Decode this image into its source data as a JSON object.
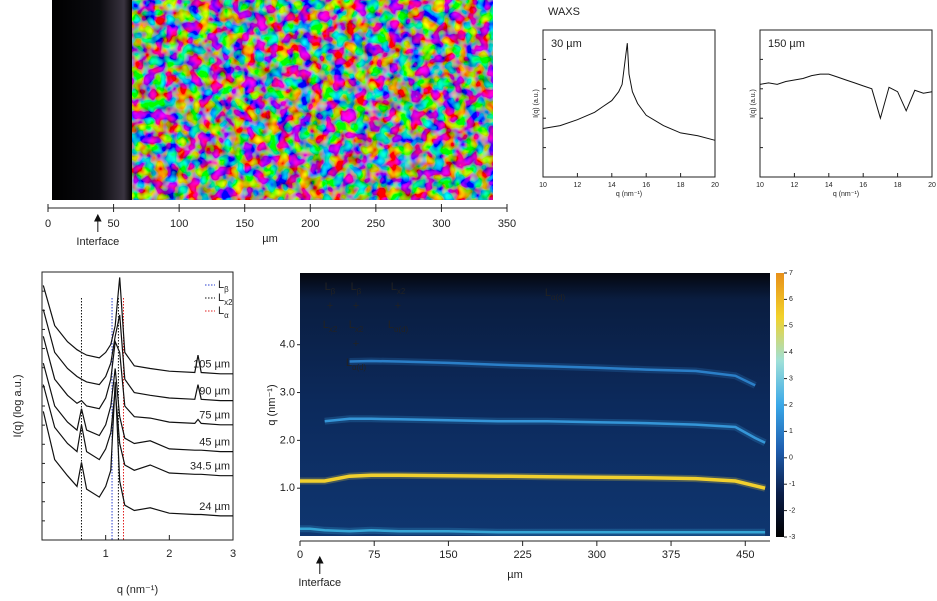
{
  "chart_data": [
    {
      "type": "image",
      "xlabel": "µm",
      "xlim": [
        0,
        350
      ],
      "xticks": [
        0,
        50,
        100,
        150,
        200,
        250,
        300,
        350
      ],
      "annotations": [
        {
          "text": "Interface",
          "x": 38
        }
      ]
    },
    {
      "type": "line",
      "title": "WAXS",
      "panel_label": "30 µm",
      "xlabel": "q (nm⁻¹)",
      "ylabel": "I(q) (a.u.)",
      "xlim": [
        10,
        20
      ],
      "xticks": [
        10,
        12,
        14,
        16,
        18,
        20
      ],
      "ylim": [
        0,
        10
      ],
      "color": "#111111",
      "x": [
        10,
        11,
        12,
        13,
        13.5,
        14,
        14.4,
        14.6,
        14.8,
        14.9,
        15,
        15.2,
        15.5,
        16,
        17,
        18,
        19,
        20
      ],
      "values": [
        3.3,
        3.5,
        3.9,
        4.4,
        4.8,
        5.2,
        5.8,
        6.3,
        8.2,
        9.1,
        7.0,
        5.8,
        5.0,
        4.2,
        3.5,
        3.0,
        2.8,
        2.5
      ]
    },
    {
      "type": "line",
      "panel_label": "150 µm",
      "xlabel": "q (nm⁻¹)",
      "ylabel": "I(q) (a.u.)",
      "xlim": [
        10,
        20
      ],
      "xticks": [
        10,
        12,
        14,
        16,
        18,
        20
      ],
      "ylim": [
        0,
        10
      ],
      "color": "#111111",
      "x": [
        10,
        10.5,
        11,
        11.5,
        12,
        12.5,
        13,
        13.5,
        14,
        14.5,
        15,
        15.5,
        16,
        16.5,
        17,
        17.5,
        18,
        18.5,
        19,
        19.5,
        20
      ],
      "values": [
        6.3,
        6.4,
        6.3,
        6.5,
        6.6,
        6.7,
        6.9,
        7.0,
        7.0,
        6.8,
        6.6,
        6.4,
        6.2,
        6.0,
        4.0,
        6.1,
        5.8,
        4.5,
        5.9,
        5.7,
        5.8
      ]
    },
    {
      "type": "multiline",
      "xlabel": "q (nm⁻¹)",
      "ylabel": "I(q) (log a.u.)",
      "xlim": [
        0,
        3
      ],
      "xticks": [
        1,
        2,
        3
      ],
      "ylim": [
        0,
        10
      ],
      "x": [
        0.02,
        0.2,
        0.4,
        0.55,
        0.62,
        0.7,
        0.9,
        1.0,
        1.08,
        1.15,
        1.22,
        1.3,
        1.45,
        1.7,
        2.0,
        2.4,
        2.45,
        2.5,
        2.8,
        3.0
      ],
      "series": [
        {
          "name": "105 µm",
          "color": "#111111",
          "values": [
            9.5,
            8.0,
            7.4,
            7.1,
            7.0,
            6.9,
            6.8,
            7.0,
            7.3,
            8.0,
            9.8,
            7.0,
            6.5,
            6.4,
            6.3,
            6.25,
            6.9,
            6.25,
            6.2,
            6.2
          ]
        },
        {
          "name": "90 µm",
          "color": "#111111",
          "values": [
            8.6,
            7.0,
            6.4,
            6.1,
            6.0,
            5.9,
            5.8,
            6.1,
            6.6,
            7.6,
            8.4,
            6.0,
            5.5,
            5.4,
            5.3,
            5.25,
            5.8,
            5.25,
            5.2,
            5.2
          ]
        },
        {
          "name": "75 µm",
          "color": "#111111",
          "values": [
            7.6,
            6.0,
            5.4,
            5.1,
            5.2,
            5.0,
            4.9,
            5.3,
            6.0,
            7.4,
            7.0,
            5.0,
            4.6,
            4.55,
            4.4,
            4.35,
            4.5,
            4.35,
            4.3,
            4.3
          ]
        },
        {
          "name": "45 µm",
          "color": "#111111",
          "values": [
            6.6,
            5.0,
            4.4,
            4.1,
            4.9,
            4.1,
            3.9,
            4.3,
            5.0,
            6.4,
            4.6,
            3.8,
            3.6,
            3.7,
            3.4,
            3.35,
            3.35,
            3.35,
            3.3,
            3.3
          ]
        },
        {
          "name": "34.5 µm",
          "color": "#111111",
          "values": [
            5.8,
            4.2,
            3.6,
            3.3,
            4.3,
            3.3,
            3.0,
            3.4,
            4.0,
            5.6,
            3.6,
            2.8,
            2.6,
            2.8,
            2.5,
            2.45,
            2.45,
            2.45,
            2.4,
            2.4
          ]
        },
        {
          "name": "24 µm",
          "color": "#111111",
          "values": [
            4.8,
            3.0,
            2.4,
            2.0,
            2.9,
            1.9,
            1.6,
            2.0,
            2.6,
            5.9,
            2.2,
            1.3,
            1.1,
            1.2,
            1.0,
            0.95,
            0.95,
            0.95,
            0.9,
            0.9
          ]
        }
      ],
      "reflections": [
        {
          "text": "L",
          "sub": "β",
          "color": "#2a3fd0",
          "values": [
            1.1
          ]
        },
        {
          "text": "L",
          "sub": "x2",
          "color": "#111111",
          "values": [
            0.62,
            1.2
          ]
        },
        {
          "text": "L",
          "sub": "α",
          "color": "#e02020",
          "values": [
            1.28
          ]
        }
      ]
    },
    {
      "type": "heatmap",
      "xlabel": "µm",
      "ylabel": "q (nm⁻¹)",
      "xlim": [
        0,
        475
      ],
      "xticks": [
        0,
        75,
        150,
        225,
        300,
        375,
        450
      ],
      "ylim": [
        0,
        5.5
      ],
      "yticks": [
        {
          "value": 1,
          "label": "1.0"
        },
        {
          "value": 2,
          "label": "2.0"
        },
        {
          "value": 3,
          "label": "3.0"
        },
        {
          "value": 4,
          "label": "4.0"
        }
      ],
      "colorbar_lim": [
        -3,
        7
      ],
      "colorbar_ticks": [
        -3,
        -2,
        -1,
        0,
        1,
        2,
        3,
        4,
        5,
        6,
        7
      ],
      "colormap": [
        "#000000",
        "#0b1e4a",
        "#1f5fb0",
        "#3aa8e8",
        "#9fe0d8",
        "#f2d22a",
        "#e8901a"
      ],
      "x": [
        0,
        10,
        25,
        50,
        72,
        100,
        150,
        200,
        250,
        300,
        350,
        400,
        440,
        460,
        470
      ],
      "series": [
        {
          "color": "#36a6d6",
          "values": [
            0.15,
            0.15,
            0.12,
            0.1,
            0.12,
            0.1,
            0.1,
            0.08,
            0.08,
            0.08,
            0.08,
            0.08,
            0.08,
            0.08,
            0.08
          ]
        },
        {
          "color": "#f1d02e",
          "values": [
            1.15,
            1.15,
            1.15,
            1.25,
            1.27,
            1.27,
            1.26,
            1.25,
            1.24,
            1.23,
            1.22,
            1.2,
            1.15,
            1.05,
            1.0
          ]
        },
        {
          "color": "#3596d8",
          "values": [
            null,
            null,
            2.4,
            2.45,
            2.45,
            2.44,
            2.42,
            2.4,
            2.4,
            2.38,
            2.36,
            2.33,
            2.28,
            2.05,
            1.95
          ]
        },
        {
          "color": "#2b7fc8",
          "values": [
            null,
            null,
            null,
            3.65,
            3.66,
            3.65,
            3.62,
            3.58,
            3.55,
            3.52,
            3.48,
            3.45,
            3.35,
            3.15,
            null
          ]
        }
      ],
      "annotations": [
        [
          {
            "text": "L",
            "sub": "β"
          },
          {
            "text": "+"
          },
          {
            "text": "L",
            "sub": "x2"
          }
        ],
        [
          {
            "text": "L",
            "sub": "β"
          },
          {
            "text": "+"
          },
          {
            "text": "L",
            "sub": "x2"
          },
          {
            "text": "+"
          },
          {
            "text": "L",
            "sub": "α(d)"
          }
        ],
        [
          {
            "text": "L",
            "sub": "x2"
          },
          {
            "text": "+"
          },
          {
            "text": "L",
            "sub": "α(d)"
          }
        ],
        [
          {
            "text": "L",
            "sub": "α(d)"
          }
        ]
      ],
      "markers": [
        {
          "text": "Interface",
          "x": 20
        }
      ]
    }
  ]
}
